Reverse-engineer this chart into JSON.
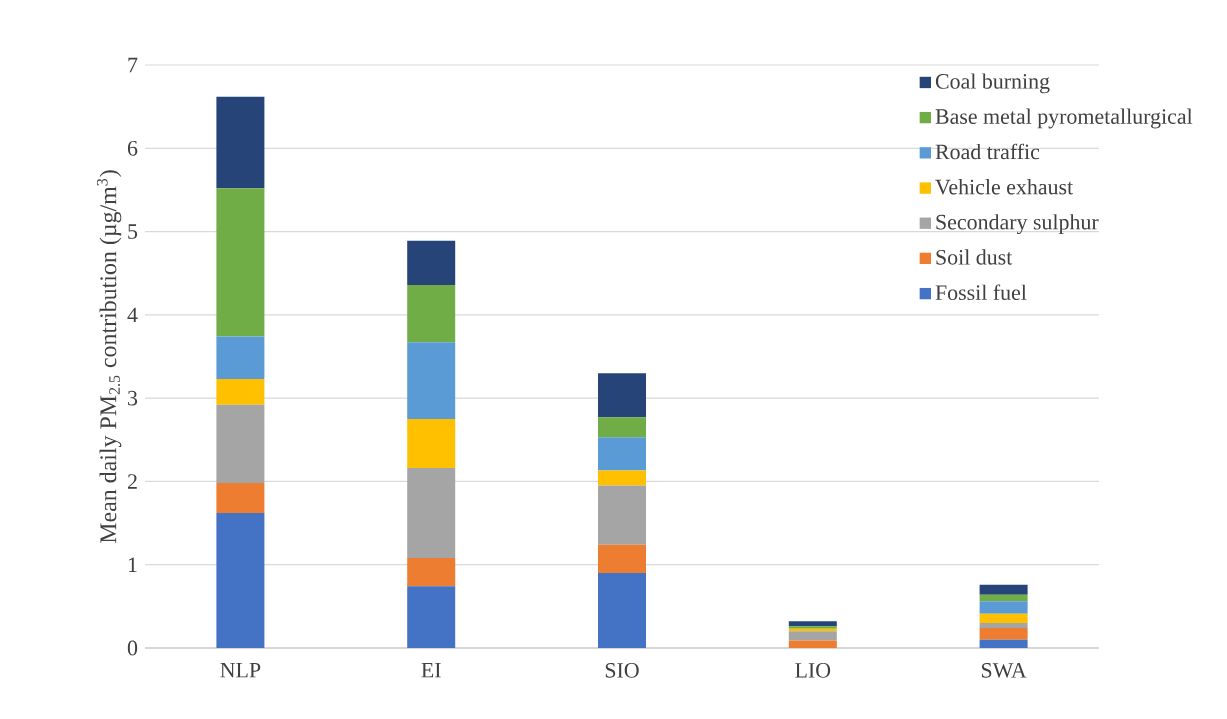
{
  "chart_data": {
    "type": "bar",
    "stacked": true,
    "ylabel": "Mean daily PM$_{2.5}$ contribution (µg/m$^{3}$)",
    "categories": [
      "NLP",
      "EI",
      "SIO",
      "LIO",
      "SWA"
    ],
    "series": [
      {
        "name": "Fossil fuel",
        "color": "#4472c4",
        "values": [
          1.62,
          0.74,
          0.9,
          0,
          0.1
        ]
      },
      {
        "name": "Soil dust",
        "color": "#ed7d31",
        "values": [
          0.36,
          0.34,
          0.34,
          0.09,
          0.14
        ]
      },
      {
        "name": "Secondary sulphur",
        "color": "#a5a5a5",
        "values": [
          0.94,
          1.08,
          0.71,
          0.11,
          0.06
        ]
      },
      {
        "name": "Vehicle exhaust",
        "color": "#ffc000",
        "values": [
          0.31,
          0.59,
          0.18,
          0.03,
          0.11
        ]
      },
      {
        "name": "Road traffic",
        "color": "#5b9bd5",
        "values": [
          0.51,
          0.92,
          0.4,
          0,
          0.15
        ]
      },
      {
        "name": "Base metal pyrometallurgical",
        "color": "#70ad47",
        "values": [
          1.78,
          0.69,
          0.24,
          0.03,
          0.08
        ]
      },
      {
        "name": "Coal burning",
        "color": "#264478",
        "values": [
          1.1,
          0.53,
          0.53,
          0.06,
          0.12
        ]
      }
    ],
    "ylim": [
      0,
      7
    ],
    "yticks": [
      0,
      1,
      2,
      3,
      4,
      5,
      6,
      7
    ],
    "grid": "y",
    "legend": "top right"
  }
}
